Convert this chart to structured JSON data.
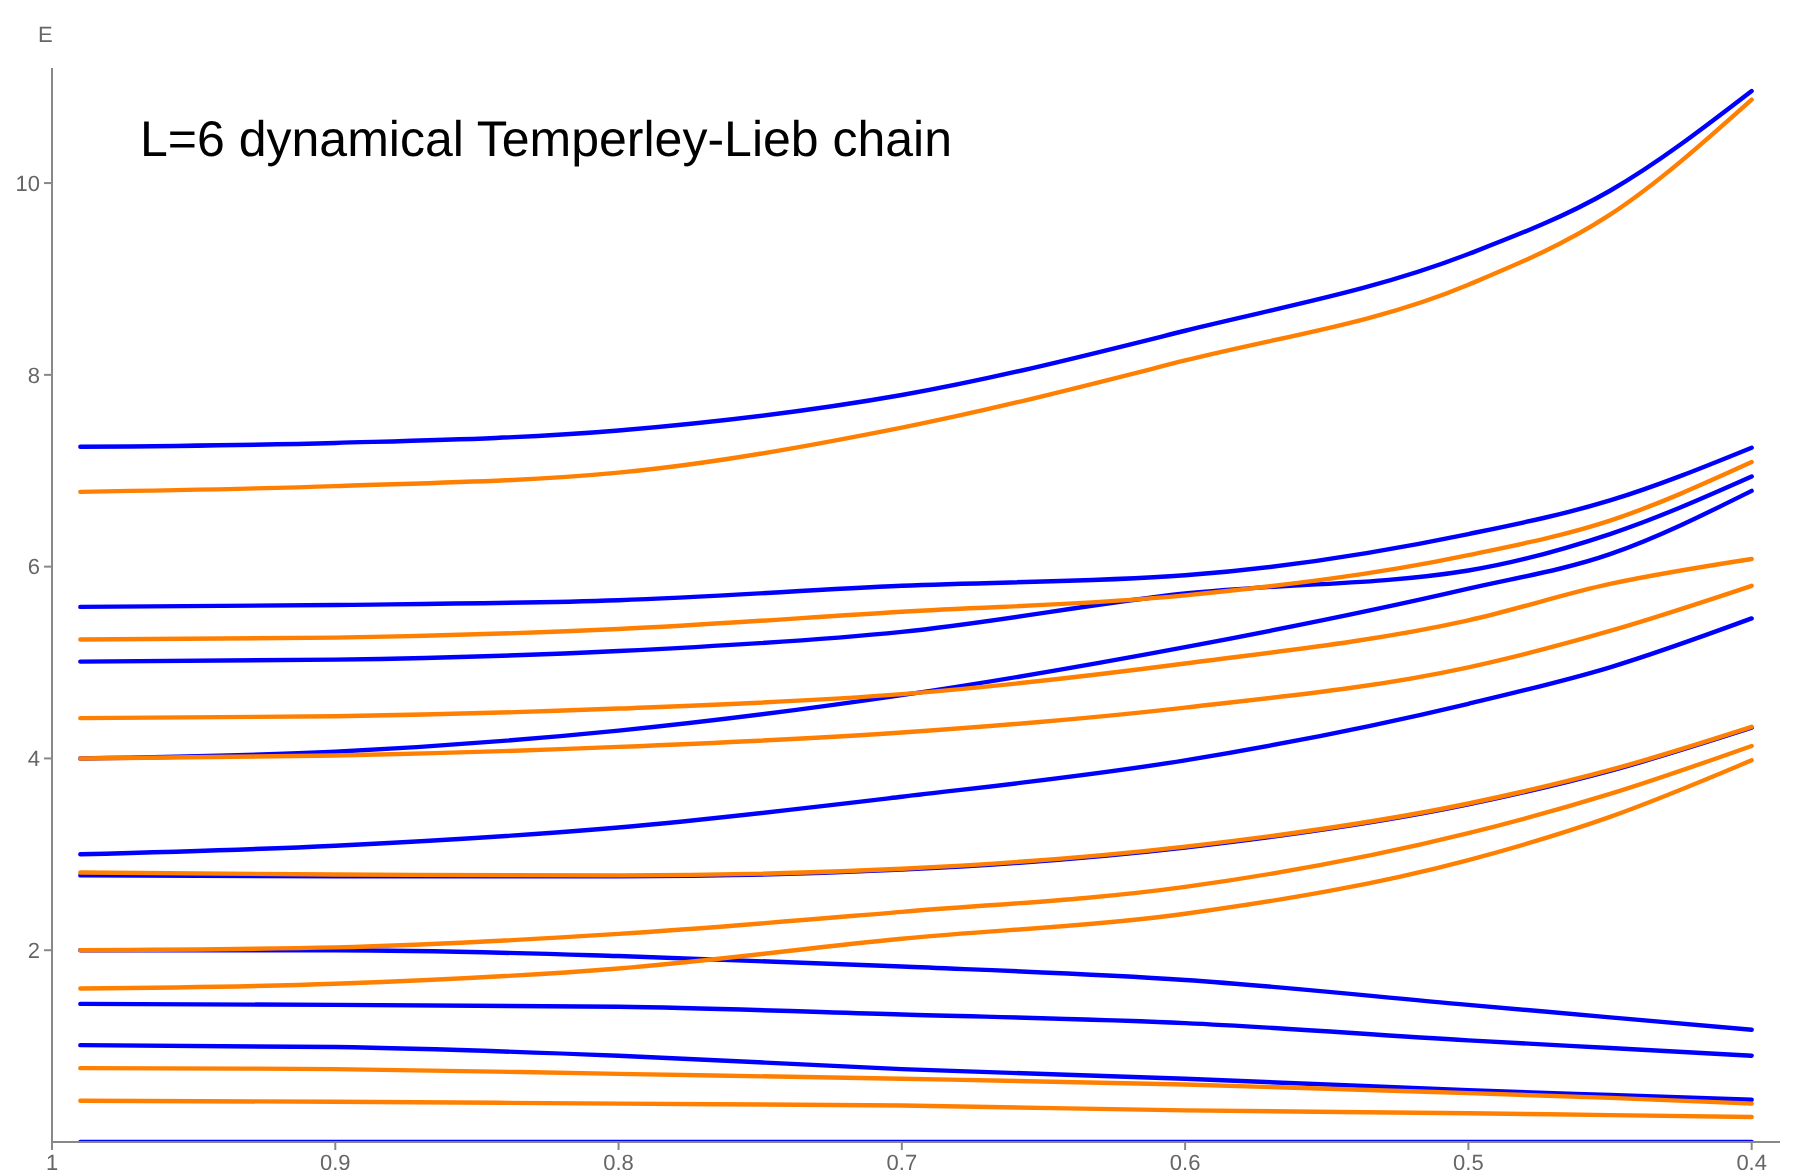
{
  "chart_data": {
    "type": "line",
    "title": "L=6 dynamical Temperley-Lieb chain",
    "ylabel": "E",
    "x": [
      0.99,
      0.9,
      0.8,
      0.7,
      0.6,
      0.5,
      0.45,
      0.4
    ],
    "xlim": [
      1,
      0.39
    ],
    "xticks": [
      1,
      0.9,
      0.8,
      0.7,
      0.6,
      0.5,
      0.4
    ],
    "ylim": [
      0,
      11.2
    ],
    "yticks": [
      2,
      4,
      6,
      8,
      10
    ],
    "grid": false,
    "marker": "none",
    "line_style": "solid",
    "series": [
      {
        "color": "#0000ff",
        "values": [
          7.25,
          7.29,
          7.42,
          7.79,
          8.46,
          9.26,
          9.92,
          10.96
        ]
      },
      {
        "color": "#0000ff",
        "values": [
          5.58,
          5.6,
          5.65,
          5.8,
          5.91,
          6.34,
          6.69,
          7.24
        ]
      },
      {
        "color": "#0000ff",
        "values": [
          5.01,
          5.03,
          5.12,
          5.32,
          5.72,
          5.96,
          6.34,
          6.94
        ]
      },
      {
        "color": "#0000ff",
        "values": [
          4.0,
          4.07,
          4.29,
          4.66,
          5.16,
          5.77,
          6.13,
          6.79
        ]
      },
      {
        "color": "#0000ff",
        "values": [
          3.0,
          3.09,
          3.28,
          3.6,
          3.98,
          4.57,
          4.95,
          5.46
        ]
      },
      {
        "color": "#0000ff",
        "values": [
          2.78,
          2.77,
          2.77,
          2.84,
          3.07,
          3.52,
          3.87,
          4.32
        ]
      },
      {
        "color": "#0000ff",
        "values": [
          2.0,
          2.0,
          1.94,
          1.83,
          1.69,
          1.43,
          1.3,
          1.17
        ]
      },
      {
        "color": "#0000ff",
        "values": [
          1.44,
          1.43,
          1.41,
          1.33,
          1.24,
          1.06,
          0.98,
          0.9
        ]
      },
      {
        "color": "#0000ff",
        "values": [
          1.01,
          0.99,
          0.9,
          0.76,
          0.66,
          0.54,
          0.49,
          0.44
        ]
      },
      {
        "color": "#0000ff",
        "values": [
          0,
          0,
          0,
          0,
          0,
          0,
          0,
          0
        ]
      },
      {
        "color": "#ff8000",
        "values": [
          6.78,
          6.84,
          6.98,
          7.45,
          8.15,
          8.94,
          9.67,
          10.87
        ]
      },
      {
        "color": "#ff8000",
        "values": [
          5.24,
          5.26,
          5.35,
          5.53,
          5.7,
          6.12,
          6.48,
          7.09
        ]
      },
      {
        "color": "#ff8000",
        "values": [
          4.42,
          4.44,
          4.52,
          4.67,
          4.99,
          5.44,
          5.82,
          6.08
        ]
      },
      {
        "color": "#ff8000",
        "values": [
          4.0,
          4.03,
          4.12,
          4.27,
          4.53,
          4.95,
          5.33,
          5.8
        ]
      },
      {
        "color": "#ff8000",
        "values": [
          2.81,
          2.79,
          2.78,
          2.85,
          3.08,
          3.53,
          3.88,
          4.33
        ]
      },
      {
        "color": "#ff8000",
        "values": [
          2.0,
          2.03,
          2.17,
          2.4,
          2.66,
          3.22,
          3.63,
          4.13
        ]
      },
      {
        "color": "#ff8000",
        "values": [
          1.6,
          1.65,
          1.81,
          2.12,
          2.38,
          2.94,
          3.39,
          3.98
        ]
      },
      {
        "color": "#ff8000",
        "values": [
          0.77,
          0.76,
          0.71,
          0.66,
          0.6,
          0.51,
          0.46,
          0.4
        ]
      },
      {
        "color": "#ff8000",
        "values": [
          0.43,
          0.42,
          0.4,
          0.38,
          0.33,
          0.3,
          0.28,
          0.26
        ]
      }
    ]
  }
}
